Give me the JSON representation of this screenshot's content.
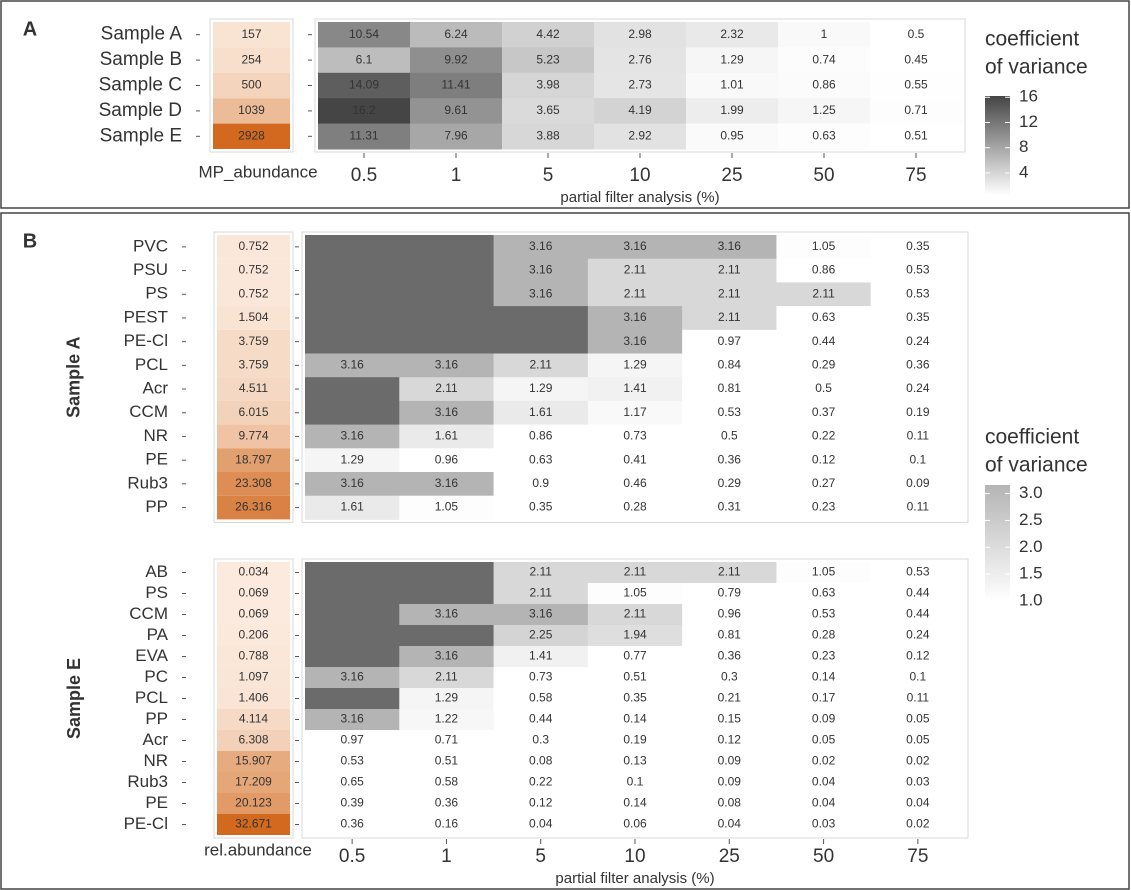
{
  "chart_data": [
    {
      "type": "heatmap",
      "panel_label": "A",
      "categories": [
        "0.5",
        "1",
        "5",
        "10",
        "25",
        "50",
        "75"
      ],
      "x_label": "partial filter analysis (%)",
      "abundance_label": "MP_abundance",
      "legend_title": [
        "coefficient",
        "of variance"
      ],
      "clim": [
        0.5,
        16.2
      ],
      "cticks": [
        16,
        12,
        8,
        4
      ],
      "colors": {
        "low": "#ffffff",
        "high": "#454545",
        "na": "#6b6b6b",
        "abundance_low": "#fbeadd",
        "abundance_high": "#d2691e"
      },
      "groups": [
        {
          "rows": [
            "Sample A",
            "Sample B",
            "Sample C",
            "Sample D",
            "Sample E"
          ],
          "abundance": [
            157,
            254,
            500,
            1039,
            2928
          ],
          "values": [
            [
              10.54,
              6.24,
              4.42,
              2.98,
              2.32,
              1,
              0.5
            ],
            [
              6.1,
              9.92,
              5.23,
              2.76,
              1.29,
              0.74,
              0.45
            ],
            [
              14.09,
              11.41,
              3.98,
              2.73,
              1.01,
              0.86,
              0.55
            ],
            [
              16.2,
              9.61,
              3.65,
              4.19,
              1.99,
              1.25,
              0.71
            ],
            [
              11.31,
              7.96,
              3.88,
              2.92,
              0.95,
              0.63,
              0.51
            ]
          ]
        }
      ]
    },
    {
      "type": "heatmap",
      "panel_label": "B",
      "categories": [
        "0.5",
        "1",
        "5",
        "10",
        "25",
        "50",
        "75"
      ],
      "x_label": "partial filter analysis (%)",
      "abundance_label": "rel.abundance",
      "legend_title": [
        "coefficient",
        "of variance"
      ],
      "clim": [
        1,
        3.16
      ],
      "cticks": [
        {
          "value": 3,
          "label": "3.0"
        },
        {
          "value": 2.5,
          "label": "2.5"
        },
        {
          "value": 2,
          "label": "2.0"
        },
        {
          "value": 1.5,
          "label": "1.5"
        },
        {
          "value": 1,
          "label": "1.0"
        }
      ],
      "colors": {
        "low": "#ffffff",
        "high": "#b4b4b4",
        "na": "#6b6b6b",
        "abundance_low": "#fbeadd",
        "abundance_high": "#d2691e"
      },
      "groups": [
        {
          "name": "Sample A",
          "rows": [
            "PVC",
            "PSU",
            "PS",
            "PEST",
            "PE-Cl",
            "PCL",
            "Acr",
            "CCM",
            "NR",
            "PE",
            "Rub3",
            "PP"
          ],
          "abundance": [
            0.752,
            0.752,
            0.752,
            1.504,
            3.759,
            3.759,
            4.511,
            6.015,
            9.774,
            18.797,
            23.308,
            26.316
          ],
          "values": [
            [
              null,
              null,
              3.16,
              3.16,
              3.16,
              1.05,
              0.35
            ],
            [
              null,
              null,
              3.16,
              2.11,
              2.11,
              0.86,
              0.53
            ],
            [
              null,
              null,
              3.16,
              2.11,
              2.11,
              2.11,
              0.53
            ],
            [
              null,
              null,
              null,
              3.16,
              2.11,
              0.63,
              0.35
            ],
            [
              null,
              null,
              null,
              3.16,
              0.97,
              0.44,
              0.24
            ],
            [
              3.16,
              3.16,
              2.11,
              1.29,
              0.84,
              0.29,
              0.36
            ],
            [
              null,
              2.11,
              1.29,
              1.41,
              0.81,
              0.5,
              0.24
            ],
            [
              null,
              3.16,
              1.61,
              1.17,
              0.53,
              0.37,
              0.19
            ],
            [
              3.16,
              1.61,
              0.86,
              0.73,
              0.5,
              0.22,
              0.11
            ],
            [
              1.29,
              0.96,
              0.63,
              0.41,
              0.36,
              0.12,
              0.1
            ],
            [
              3.16,
              3.16,
              0.9,
              0.46,
              0.29,
              0.27,
              0.09
            ],
            [
              1.61,
              1.05,
              0.35,
              0.28,
              0.31,
              0.23,
              0.11
            ]
          ]
        },
        {
          "name": "Sample E",
          "rows": [
            "AB",
            "PS",
            "CCM",
            "PA",
            "EVA",
            "PC",
            "PCL",
            "PP",
            "Acr",
            "NR",
            "Rub3",
            "PE",
            "PE-Cl"
          ],
          "abundance": [
            0.034,
            0.069,
            0.069,
            0.206,
            0.788,
            1.097,
            1.406,
            4.114,
            6.308,
            15.907,
            17.209,
            20.123,
            32.671
          ],
          "values": [
            [
              null,
              null,
              2.11,
              2.11,
              2.11,
              1.05,
              0.53
            ],
            [
              null,
              null,
              2.11,
              1.05,
              0.79,
              0.63,
              0.44
            ],
            [
              null,
              3.16,
              3.16,
              2.11,
              0.96,
              0.53,
              0.44
            ],
            [
              null,
              null,
              2.25,
              1.94,
              0.81,
              0.28,
              0.24
            ],
            [
              null,
              3.16,
              1.41,
              0.77,
              0.36,
              0.23,
              0.12
            ],
            [
              3.16,
              2.11,
              0.73,
              0.51,
              0.3,
              0.14,
              0.1
            ],
            [
              null,
              1.29,
              0.58,
              0.35,
              0.21,
              0.17,
              0.11
            ],
            [
              3.16,
              1.22,
              0.44,
              0.14,
              0.15,
              0.09,
              0.05
            ],
            [
              0.97,
              0.71,
              0.3,
              0.19,
              0.12,
              0.05,
              0.05
            ],
            [
              0.53,
              0.51,
              0.08,
              0.13,
              0.09,
              0.02,
              0.02
            ],
            [
              0.65,
              0.58,
              0.22,
              0.1,
              0.09,
              0.04,
              0.03
            ],
            [
              0.39,
              0.36,
              0.12,
              0.14,
              0.08,
              0.04,
              0.04
            ],
            [
              0.36,
              0.16,
              0.04,
              0.06,
              0.04,
              0.03,
              0.02
            ]
          ]
        }
      ]
    }
  ]
}
